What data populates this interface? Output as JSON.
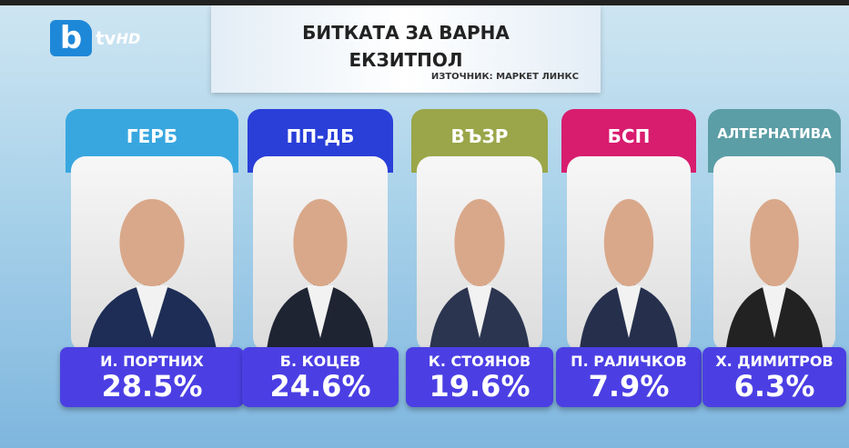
{
  "logo": {
    "brand": "b",
    "channel": "tv",
    "suffix": "HD"
  },
  "header": {
    "title": "БИТКАТА ЗА ВАРНА",
    "subtitle": "ЕКЗИТПОЛ",
    "source": "ИЗТОЧНИК: МАРКЕТ ЛИНКС"
  },
  "candidates": [
    {
      "party": "ГЕРБ",
      "name": "И. ПОРТНИХ",
      "result": "28.5%"
    },
    {
      "party": "ПП-ДБ",
      "name": "Б. КОЦЕВ",
      "result": "24.6%"
    },
    {
      "party": "ВЪЗР",
      "name": "К. СТОЯНОВ",
      "result": "19.6%"
    },
    {
      "party": "БСП",
      "name": "П. РАЛИЧКОВ",
      "result": "7.9%"
    },
    {
      "party": "АЛТЕРНАТИВА",
      "name": "Х. ДИМИТРОВ",
      "result": "6.3%"
    }
  ]
}
